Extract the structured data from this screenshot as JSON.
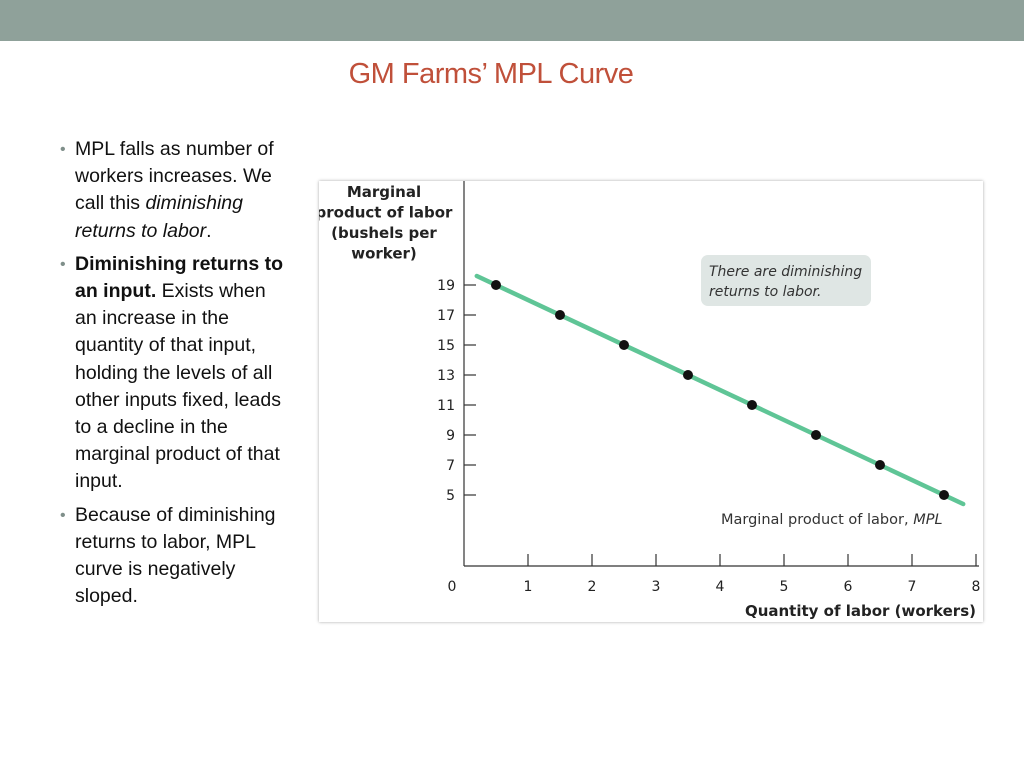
{
  "slide": {
    "title": "GM Farms’ MPL Curve",
    "bullets": [
      {
        "parts": [
          {
            "text": "MPL falls as number of workers increases.  We call this ",
            "style": "normal"
          },
          {
            "text": "diminishing returns to labor",
            "style": "italic"
          },
          {
            "text": ".",
            "style": "normal"
          }
        ]
      },
      {
        "parts": [
          {
            "text": "Diminishing returns to an input.",
            "style": "bold"
          },
          {
            "text": "  Exists when an increase in the quantity of that input, holding the levels of all other inputs fixed, leads to a decline in the marginal product of that input.",
            "style": "normal"
          }
        ]
      },
      {
        "parts": [
          {
            "text": "Because of diminishing returns to labor, MPL curve is negatively sloped.",
            "style": "normal"
          }
        ]
      }
    ]
  },
  "chart_data": {
    "type": "line",
    "ylabel_lines": [
      "Marginal",
      "product of labor",
      "(bushels per",
      "worker)"
    ],
    "xlabel": "Quantity of labor (workers)",
    "x_ticks": [
      0,
      1,
      2,
      3,
      4,
      5,
      6,
      7,
      8
    ],
    "y_ticks": [
      5,
      7,
      9,
      11,
      13,
      15,
      17,
      19
    ],
    "xlim": [
      0,
      8
    ],
    "ylim": [
      0,
      19
    ],
    "series": [
      {
        "name": "Marginal product of labor, MPL",
        "x": [
          0.5,
          1.5,
          2.5,
          3.5,
          4.5,
          5.5,
          6.5,
          7.5
        ],
        "y": [
          19,
          17,
          15,
          13,
          11,
          9,
          7,
          5
        ]
      }
    ],
    "series_label": {
      "text": "Marginal product of labor, ",
      "italic": "MPL"
    },
    "annotation": "There are diminishing returns to labor.",
    "annotation_lines": [
      "There are diminishing",
      "returns to labor."
    ],
    "colors": {
      "line": "#5fc596",
      "point": "#111111",
      "axis": "#333333",
      "annotation_bg": "#dfe6e4",
      "title": "#c0503a",
      "top_bar": "#8fa19a"
    }
  }
}
